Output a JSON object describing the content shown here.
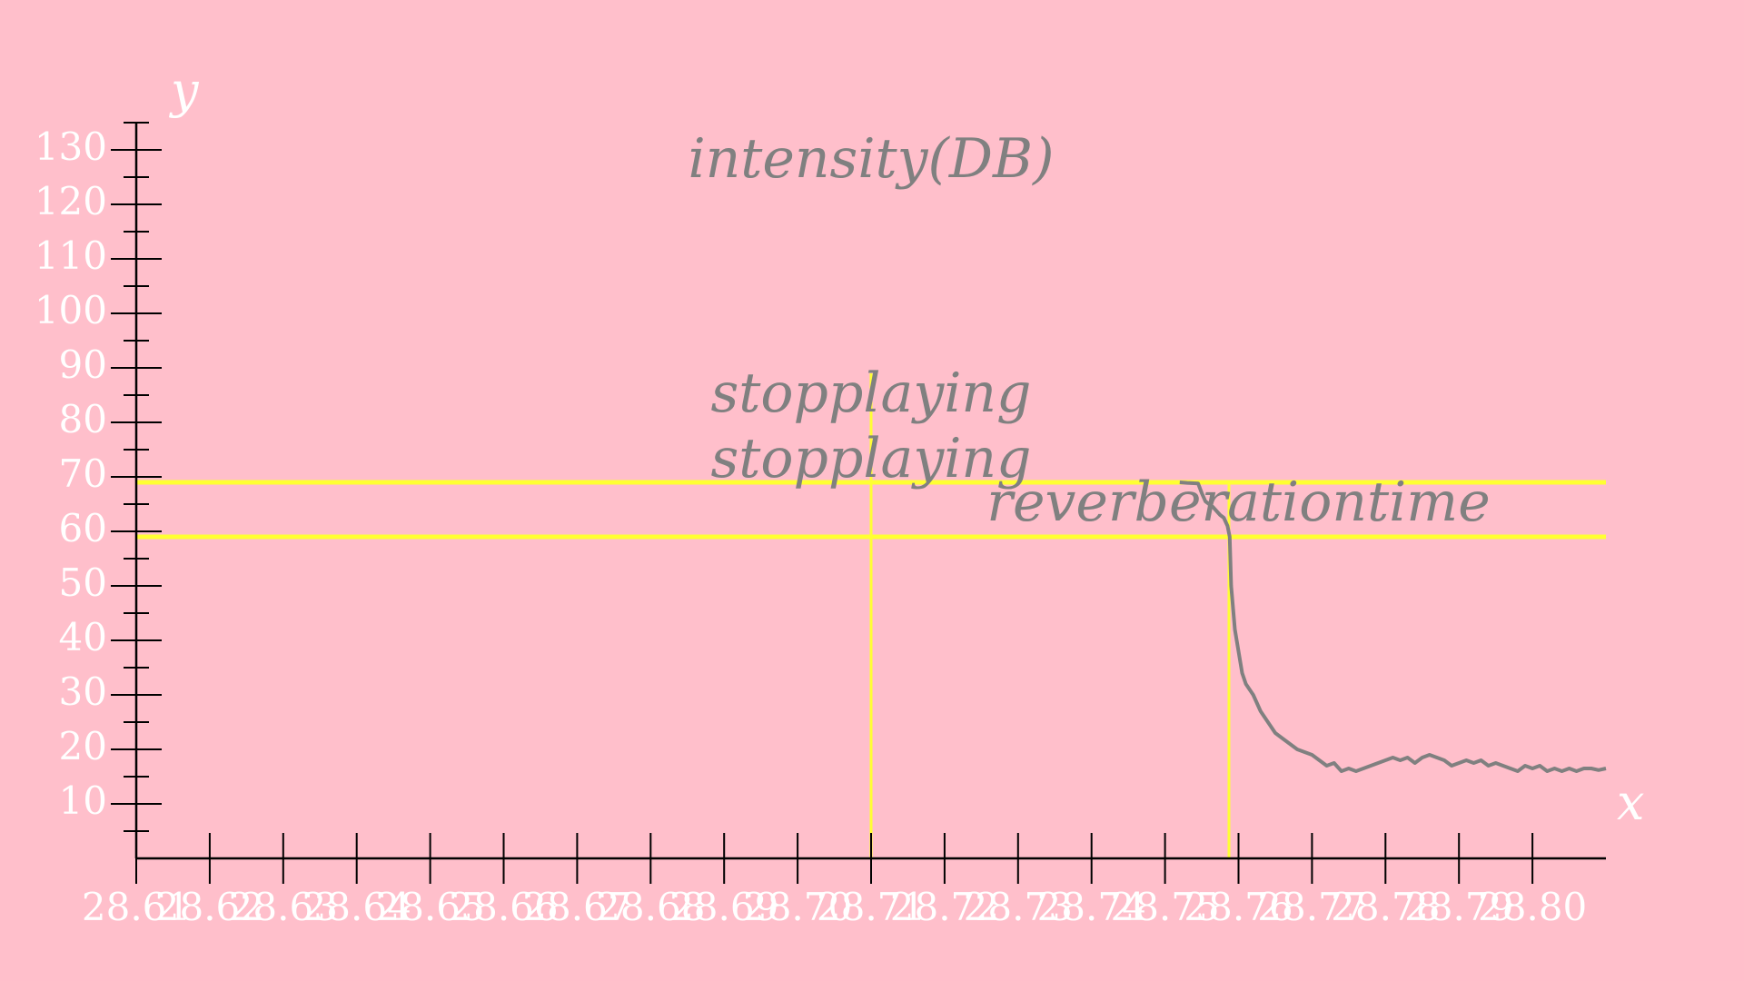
{
  "colors": {
    "background": "#ffbfcb",
    "axis": "#000000",
    "tick_label": "#ffffff",
    "curve": "#808080",
    "guide": "#ffff33",
    "annotation": "#808080"
  },
  "chart_data": {
    "type": "line",
    "xlabel": "x",
    "ylabel": "y",
    "xlim": [
      28.61,
      28.81
    ],
    "ylim": [
      0,
      135
    ],
    "grid": false,
    "x_ticks": [
      "28.61",
      "28.62",
      "28.63",
      "28.64",
      "28.65",
      "28.66",
      "28.67",
      "28.68",
      "28.69",
      "28.70",
      "28.71",
      "28.72",
      "28.73",
      "28.74",
      "28.75",
      "28.76",
      "28.77",
      "28.78",
      "28.79",
      "28.80"
    ],
    "y_ticks": [
      "10",
      "20",
      "30",
      "40",
      "50",
      "60",
      "70",
      "80",
      "90",
      "100",
      "110",
      "120",
      "130"
    ],
    "annotations": [
      {
        "text": "intensity(DB)",
        "x": 28.71,
        "y": 125
      },
      {
        "text": "stopplaying",
        "x": 28.71,
        "y": 82
      },
      {
        "text": "stopplaying",
        "x": 28.71,
        "y": 70
      },
      {
        "text": "reverberationtime",
        "x": 28.76,
        "y": 62
      }
    ],
    "hlines": [
      {
        "y": 69,
        "x_range": [
          28.61,
          28.81
        ]
      },
      {
        "y": 59,
        "x_range": [
          28.61,
          28.81
        ]
      }
    ],
    "vlines": [
      {
        "x": 28.71,
        "y_range": [
          0,
          89
        ]
      },
      {
        "x": 28.7587,
        "y_range": [
          0,
          69
        ]
      }
    ],
    "series": [
      {
        "values": [
          [
            28.752,
            69.0
          ],
          [
            28.753,
            68.9
          ],
          [
            28.7545,
            68.8
          ],
          [
            28.755,
            67.0
          ],
          [
            28.7555,
            65.5
          ],
          [
            28.7565,
            64.5
          ],
          [
            28.7575,
            63.0
          ],
          [
            28.758,
            62.5
          ],
          [
            28.7585,
            61.0
          ],
          [
            28.7588,
            59.0
          ],
          [
            28.759,
            50.0
          ],
          [
            28.7595,
            42.0
          ],
          [
            28.76,
            38.0
          ],
          [
            28.7605,
            34.0
          ],
          [
            28.761,
            32.0
          ],
          [
            28.762,
            30.0
          ],
          [
            28.763,
            27.0
          ],
          [
            28.764,
            25.0
          ],
          [
            28.765,
            23.0
          ],
          [
            28.766,
            22.0
          ],
          [
            28.767,
            21.0
          ],
          [
            28.768,
            20.0
          ],
          [
            28.769,
            19.5
          ],
          [
            28.77,
            19.0
          ],
          [
            28.771,
            18.0
          ],
          [
            28.772,
            17.0
          ],
          [
            28.773,
            17.5
          ],
          [
            28.774,
            16.0
          ],
          [
            28.775,
            16.5
          ],
          [
            28.776,
            16.0
          ],
          [
            28.777,
            16.5
          ],
          [
            28.778,
            17.0
          ],
          [
            28.779,
            17.5
          ],
          [
            28.78,
            18.0
          ],
          [
            28.781,
            18.5
          ],
          [
            28.782,
            18.0
          ],
          [
            28.783,
            18.5
          ],
          [
            28.784,
            17.5
          ],
          [
            28.785,
            18.5
          ],
          [
            28.786,
            19.0
          ],
          [
            28.787,
            18.5
          ],
          [
            28.788,
            18.0
          ],
          [
            28.789,
            17.0
          ],
          [
            28.79,
            17.5
          ],
          [
            28.791,
            18.0
          ],
          [
            28.792,
            17.5
          ],
          [
            28.793,
            18.0
          ],
          [
            28.794,
            17.0
          ],
          [
            28.795,
            17.5
          ],
          [
            28.796,
            17.0
          ],
          [
            28.797,
            16.5
          ],
          [
            28.798,
            16.0
          ],
          [
            28.799,
            17.0
          ],
          [
            28.8,
            16.5
          ],
          [
            28.801,
            17.0
          ],
          [
            28.802,
            16.0
          ],
          [
            28.803,
            16.5
          ],
          [
            28.804,
            16.0
          ],
          [
            28.805,
            16.5
          ],
          [
            28.806,
            16.0
          ],
          [
            28.807,
            16.5
          ],
          [
            28.808,
            16.5
          ],
          [
            28.809,
            16.2
          ],
          [
            28.81,
            16.5
          ]
        ]
      }
    ]
  }
}
